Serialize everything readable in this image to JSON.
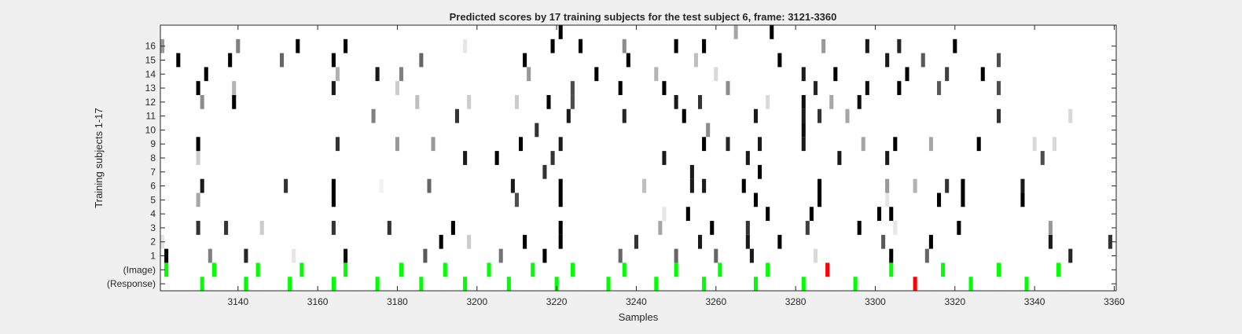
{
  "chart_data": {
    "type": "heatmap",
    "title": "Predicted scores by 17 training subjects for the test subject 6, frame: 3121-3360",
    "xlabel": "Samples",
    "ylabel": "Training subjects 1-17",
    "xlim": [
      3121,
      3360
    ],
    "x_ticks": [
      "3140",
      "3160",
      "3180",
      "3200",
      "3220",
      "3240",
      "3260",
      "3280",
      "3300",
      "3320",
      "3340",
      "3360"
    ],
    "y_ticks": [
      "(Response)",
      "(Image)",
      "1",
      "2",
      "3",
      "4",
      "5",
      "6",
      "7",
      "8",
      "9",
      "10",
      "11",
      "12",
      "13",
      "14",
      "15",
      "16"
    ],
    "rows": [
      "(Response)",
      "(Image)",
      "1",
      "2",
      "3",
      "4",
      "5",
      "6",
      "7",
      "8",
      "9",
      "10",
      "11",
      "12",
      "13",
      "14",
      "15",
      "16",
      "17"
    ],
    "marker_colors": {
      "correct": "#00ff00",
      "error": "#ff0000"
    },
    "image_events": [
      {
        "x": 3122,
        "status": "correct"
      },
      {
        "x": 3134,
        "status": "correct"
      },
      {
        "x": 3145,
        "status": "correct"
      },
      {
        "x": 3156,
        "status": "correct"
      },
      {
        "x": 3167,
        "status": "correct"
      },
      {
        "x": 3181,
        "status": "correct"
      },
      {
        "x": 3192,
        "status": "correct"
      },
      {
        "x": 3203,
        "status": "correct"
      },
      {
        "x": 3214,
        "status": "correct"
      },
      {
        "x": 3224,
        "status": "correct"
      },
      {
        "x": 3237,
        "status": "correct"
      },
      {
        "x": 3250,
        "status": "correct"
      },
      {
        "x": 3261,
        "status": "correct"
      },
      {
        "x": 3273,
        "status": "correct"
      },
      {
        "x": 3288,
        "status": "error"
      },
      {
        "x": 3304,
        "status": "correct"
      },
      {
        "x": 3317,
        "status": "correct"
      },
      {
        "x": 3331,
        "status": "correct"
      },
      {
        "x": 3346,
        "status": "correct"
      }
    ],
    "response_events": [
      {
        "x": 3131,
        "status": "correct"
      },
      {
        "x": 3142,
        "status": "correct"
      },
      {
        "x": 3153,
        "status": "correct"
      },
      {
        "x": 3164,
        "status": "correct"
      },
      {
        "x": 3175,
        "status": "correct"
      },
      {
        "x": 3186,
        "status": "correct"
      },
      {
        "x": 3197,
        "status": "correct"
      },
      {
        "x": 3208,
        "status": "correct"
      },
      {
        "x": 3220,
        "status": "correct"
      },
      {
        "x": 3233,
        "status": "correct"
      },
      {
        "x": 3245,
        "status": "correct"
      },
      {
        "x": 3257,
        "status": "correct"
      },
      {
        "x": 3270,
        "status": "correct"
      },
      {
        "x": 3282,
        "status": "correct"
      },
      {
        "x": 3295,
        "status": "correct"
      },
      {
        "x": 3310,
        "status": "error"
      },
      {
        "x": 3324,
        "status": "correct"
      },
      {
        "x": 3338,
        "status": "correct"
      }
    ],
    "scores": [
      {
        "row": 1,
        "cells": [
          [
            3122,
            0.0
          ],
          [
            3133,
            0.5
          ],
          [
            3142,
            0.15
          ],
          [
            3154,
            0.9
          ],
          [
            3167,
            0.05
          ],
          [
            3187,
            0.35
          ],
          [
            3206,
            0.45
          ],
          [
            3217,
            0.0
          ],
          [
            3236,
            0.4
          ],
          [
            3250,
            0.4
          ],
          [
            3260,
            0.4
          ],
          [
            3269,
            0.1
          ],
          [
            3285,
            0.85
          ],
          [
            3304,
            0.0
          ],
          [
            3313,
            0.4
          ],
          [
            3349,
            0.15
          ]
        ]
      },
      {
        "row": 2,
        "cells": [
          [
            3121,
            0.9
          ],
          [
            3191,
            0.0
          ],
          [
            3198,
            0.8
          ],
          [
            3212,
            0.0
          ],
          [
            3221,
            0.0
          ],
          [
            3240,
            0.2
          ],
          [
            3256,
            0.1
          ],
          [
            3268,
            0.1
          ],
          [
            3276,
            0.0
          ],
          [
            3302,
            0.35
          ],
          [
            3314,
            0.0
          ],
          [
            3344,
            0.1
          ],
          [
            3359,
            0.2
          ]
        ]
      },
      {
        "row": 3,
        "cells": [
          [
            3120,
            0.2
          ],
          [
            3130,
            0.2
          ],
          [
            3137,
            0.2
          ],
          [
            3146,
            0.8
          ],
          [
            3164,
            0.2
          ],
          [
            3178,
            0.2
          ],
          [
            3194,
            0.0
          ],
          [
            3221,
            0.0
          ],
          [
            3246,
            0.65
          ],
          [
            3259,
            0.0
          ],
          [
            3268,
            0.2
          ],
          [
            3283,
            0.25
          ],
          [
            3296,
            0.0
          ],
          [
            3305,
            0.9
          ],
          [
            3321,
            0.0
          ],
          [
            3344,
            0.6
          ]
        ]
      },
      {
        "row": 4,
        "cells": [
          [
            3247,
            0.9
          ],
          [
            3253,
            0.0
          ],
          [
            3273,
            0.0
          ],
          [
            3284,
            0.0
          ],
          [
            3301,
            0.0
          ],
          [
            3304,
            0.0
          ]
        ]
      },
      {
        "row": 5,
        "cells": [
          [
            3120,
            0.0
          ],
          [
            3130,
            0.65
          ],
          [
            3164,
            0.0
          ],
          [
            3210,
            0.3
          ],
          [
            3221,
            0.0
          ],
          [
            3270,
            0.0
          ],
          [
            3286,
            0.0
          ],
          [
            3303,
            0.9
          ],
          [
            3316,
            0.0
          ],
          [
            3322,
            0.0
          ],
          [
            3337,
            0.0
          ]
        ]
      },
      {
        "row": 6,
        "cells": [
          [
            3120,
            0.0
          ],
          [
            3131,
            0.1
          ],
          [
            3152,
            0.2
          ],
          [
            3164,
            0.0
          ],
          [
            3176,
            0.95
          ],
          [
            3188,
            0.4
          ],
          [
            3209,
            0.1
          ],
          [
            3221,
            0.0
          ],
          [
            3242,
            0.75
          ],
          [
            3254,
            0.1
          ],
          [
            3257,
            0.1
          ],
          [
            3267,
            0.0
          ],
          [
            3286,
            0.0
          ],
          [
            3303,
            0.6
          ],
          [
            3310,
            0.7
          ],
          [
            3318,
            0.2
          ],
          [
            3322,
            0.0
          ],
          [
            3337,
            0.1
          ]
        ]
      },
      {
        "row": 7,
        "cells": [
          [
            3217,
            0.2
          ],
          [
            3254,
            0.1
          ],
          [
            3271,
            0.0
          ]
        ]
      },
      {
        "row": 8,
        "cells": [
          [
            3130,
            0.8
          ],
          [
            3197,
            0.1
          ],
          [
            3205,
            0.0
          ],
          [
            3219,
            0.2
          ],
          [
            3247,
            0.1
          ],
          [
            3268,
            0.1
          ],
          [
            3291,
            0.1
          ],
          [
            3303,
            0.1
          ],
          [
            3342,
            0.3
          ]
        ]
      },
      {
        "row": 9,
        "cells": [
          [
            3119,
            0.0
          ],
          [
            3130,
            0.0
          ],
          [
            3165,
            0.2
          ],
          [
            3180,
            0.6
          ],
          [
            3189,
            0.6
          ],
          [
            3211,
            0.0
          ],
          [
            3221,
            0.1
          ],
          [
            3257,
            0.0
          ],
          [
            3263,
            0.15
          ],
          [
            3271,
            0.1
          ],
          [
            3282,
            0.1
          ],
          [
            3297,
            0.65
          ],
          [
            3305,
            0.0
          ],
          [
            3314,
            0.65
          ],
          [
            3326,
            0.0
          ],
          [
            3340,
            0.85
          ],
          [
            3345,
            0.85
          ]
        ]
      },
      {
        "row": 10,
        "cells": [
          [
            3215,
            0.2
          ],
          [
            3258,
            0.55
          ],
          [
            3282,
            0.05
          ]
        ]
      },
      {
        "row": 11,
        "cells": [
          [
            3174,
            0.5
          ],
          [
            3195,
            0.2
          ],
          [
            3223,
            0.1
          ],
          [
            3237,
            0.15
          ],
          [
            3252,
            0.0
          ],
          [
            3270,
            0.1
          ],
          [
            3282,
            0.1
          ],
          [
            3286,
            0.2
          ],
          [
            3293,
            0.65
          ],
          [
            3331,
            0.2
          ],
          [
            3349,
            0.85
          ]
        ]
      },
      {
        "row": 12,
        "cells": [
          [
            3131,
            0.55
          ],
          [
            3139,
            0.0
          ],
          [
            3185,
            0.75
          ],
          [
            3198,
            0.8
          ],
          [
            3210,
            0.8
          ],
          [
            3218,
            0.0
          ],
          [
            3224,
            0.3
          ],
          [
            3250,
            0.1
          ],
          [
            3256,
            0.2
          ],
          [
            3273,
            0.85
          ],
          [
            3282,
            0.05
          ],
          [
            3289,
            0.65
          ],
          [
            3296,
            0.05
          ]
        ]
      },
      {
        "row": 13,
        "cells": [
          [
            3130,
            0.0
          ],
          [
            3139,
            0.7
          ],
          [
            3164,
            0.1
          ],
          [
            3180,
            0.8
          ],
          [
            3224,
            0.3
          ],
          [
            3236,
            0.0
          ],
          [
            3247,
            0.0
          ],
          [
            3263,
            0.55
          ],
          [
            3285,
            0.15
          ],
          [
            3298,
            0.05
          ],
          [
            3306,
            0.0
          ],
          [
            3316,
            0.35
          ],
          [
            3331,
            0.3
          ]
        ]
      },
      {
        "row": 14,
        "cells": [
          [
            3119,
            0.95
          ],
          [
            3132,
            0.0
          ],
          [
            3165,
            0.7
          ],
          [
            3175,
            0.1
          ],
          [
            3181,
            0.5
          ],
          [
            3213,
            0.6
          ],
          [
            3230,
            0.0
          ],
          [
            3245,
            0.7
          ],
          [
            3260,
            0.85
          ],
          [
            3282,
            0.1
          ],
          [
            3290,
            0.0
          ],
          [
            3308,
            0.0
          ],
          [
            3318,
            0.25
          ],
          [
            3327,
            0.0
          ]
        ]
      },
      {
        "row": 15,
        "cells": [
          [
            3125,
            0.0
          ],
          [
            3138,
            0.0
          ],
          [
            3151,
            0.4
          ],
          [
            3164,
            0.0
          ],
          [
            3186,
            0.4
          ],
          [
            3212,
            0.0
          ],
          [
            3238,
            0.0
          ],
          [
            3255,
            0.75
          ],
          [
            3276,
            0.0
          ],
          [
            3303,
            0.1
          ],
          [
            3312,
            0.35
          ],
          [
            3331,
            0.3
          ]
        ]
      },
      {
        "row": 16,
        "cells": [
          [
            3121,
            0.6
          ],
          [
            3140,
            0.5
          ],
          [
            3155,
            0.0
          ],
          [
            3167,
            0.0
          ],
          [
            3197,
            0.9
          ],
          [
            3219,
            0.0
          ],
          [
            3226,
            0.0
          ],
          [
            3237,
            0.55
          ],
          [
            3250,
            0.0
          ],
          [
            3257,
            0.0
          ],
          [
            3287,
            0.6
          ],
          [
            3298,
            0.1
          ],
          [
            3306,
            0.15
          ],
          [
            3320,
            0.0
          ]
        ]
      },
      {
        "row": 17,
        "cells": [
          [
            3221,
            0.0
          ],
          [
            3265,
            0.65
          ],
          [
            3274,
            0.0
          ]
        ]
      }
    ],
    "grid": false,
    "legend": "none"
  }
}
